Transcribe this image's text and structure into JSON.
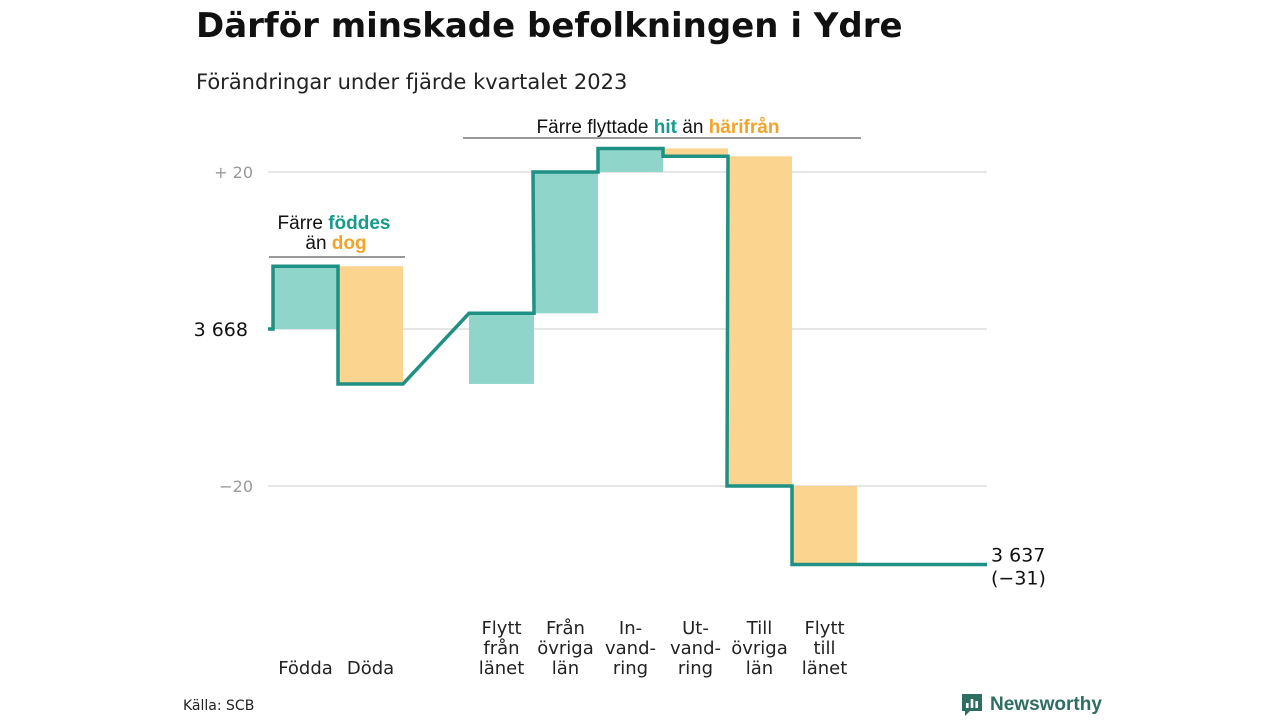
{
  "header": {
    "title": "Därför minskade befolkningen i Ydre",
    "subtitle": "Förändringar under fjärde kvartalet 2023"
  },
  "colors": {
    "increase": "#8fd5ca",
    "decrease": "#fbd590",
    "step_line": "#1e9084",
    "accent_teal": "#169b8d",
    "accent_orange": "#f3a32a",
    "gridline": "#dddddd",
    "axis_tick_text": "#999999"
  },
  "annotations": {
    "births_prefix": "Färre",
    "births_highlight": "föddes",
    "births_suffix": "än",
    "births_highlight2": "dog",
    "migration_prefix": "Färre flyttade",
    "migration_highlight": "hit",
    "migration_mid": "än",
    "migration_highlight2": "härifrån"
  },
  "chart_data": {
    "type": "waterfall",
    "title": "Därför minskade befolkningen i Ydre",
    "subtitle": "Förändringar under fjärde kvartalet 2023",
    "start_value": 3668,
    "start_label": "3 668",
    "end_value": 3637,
    "end_label": "3 637",
    "end_change_label": "(−31)",
    "yticks": [
      {
        "value": 20,
        "label": "+  20"
      },
      {
        "value": 0,
        "label": ""
      },
      {
        "value": -20,
        "label": "−20"
      }
    ],
    "ylim": [
      -34,
      23
    ],
    "categories": [
      {
        "label": [
          "Födda"
        ],
        "change": 8,
        "kind": "in"
      },
      {
        "label": [
          "Döda"
        ],
        "change": -15,
        "kind": "out"
      },
      {
        "label": [
          "Flytt",
          "från",
          "länet"
        ],
        "change": 9,
        "kind": "in"
      },
      {
        "label": [
          "Från",
          "övriga",
          "län"
        ],
        "change": 18,
        "kind": "in"
      },
      {
        "label": [
          "In-",
          "vand-",
          "ring"
        ],
        "change": 3,
        "kind": "in"
      },
      {
        "label": [
          "Ut-",
          "vand-",
          "ring"
        ],
        "change": -1,
        "kind": "out"
      },
      {
        "label": [
          "Till",
          "övriga",
          "län"
        ],
        "change": -42,
        "kind": "out"
      },
      {
        "label": [
          "Flytt",
          "till",
          "länet"
        ],
        "change": -10,
        "kind": "out"
      }
    ]
  },
  "footer": {
    "source": "Källa: SCB",
    "brand": "Newsworthy",
    "brand_icon": "bar-chart-logo-icon"
  }
}
